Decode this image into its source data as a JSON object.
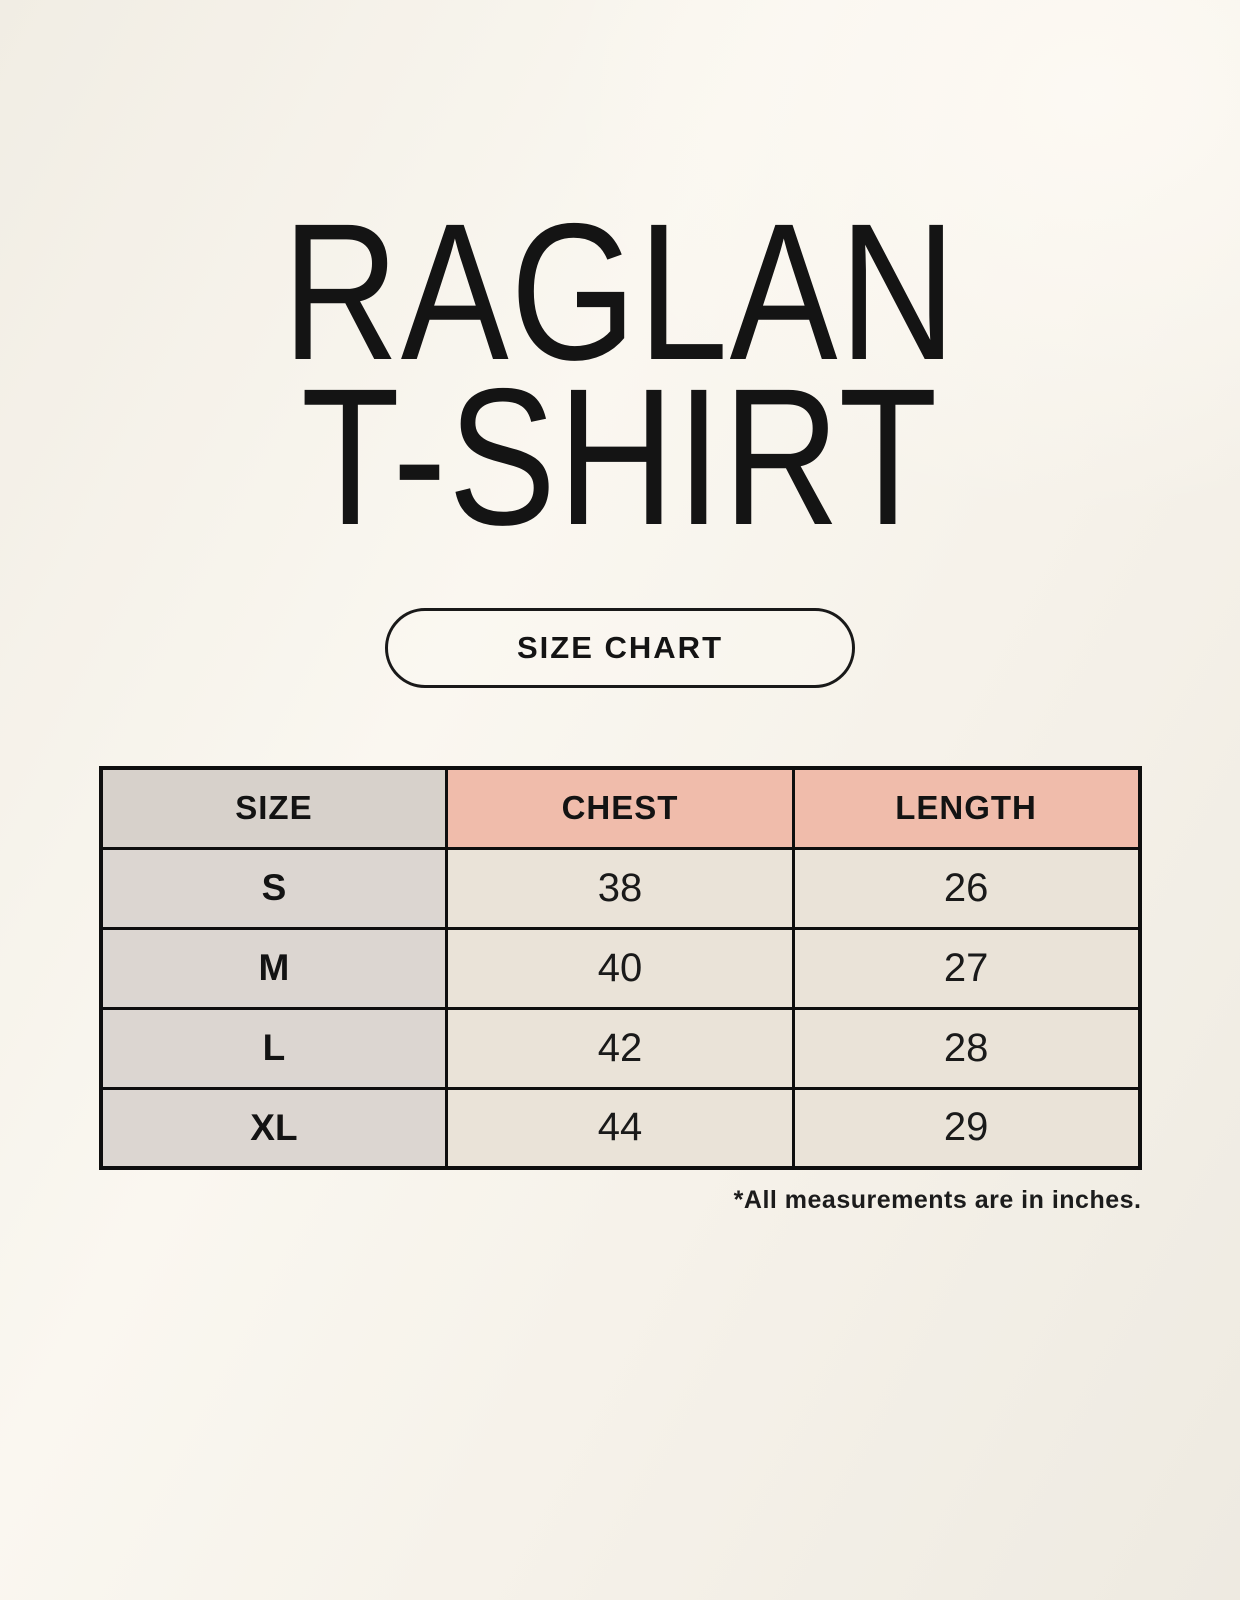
{
  "page": {
    "title_line1": "RAGLAN",
    "title_line2": "T-SHIRT",
    "button_label": "SIZE CHART",
    "footnote": "*All measurements are in inches."
  },
  "size_table": {
    "headers": [
      "SIZE",
      "CHEST",
      "LENGTH"
    ],
    "rows": [
      {
        "size": "S",
        "chest": "38",
        "length": "26"
      },
      {
        "size": "M",
        "chest": "40",
        "length": "27"
      },
      {
        "size": "L",
        "chest": "42",
        "length": "28"
      },
      {
        "size": "XL",
        "chest": "44",
        "length": "29"
      }
    ]
  },
  "chart_data": {
    "type": "table",
    "title": "RAGLAN T-SHIRT size chart",
    "columns": [
      "SIZE",
      "CHEST",
      "LENGTH"
    ],
    "rows": [
      [
        "S",
        38,
        26
      ],
      [
        "M",
        40,
        27
      ],
      [
        "L",
        42,
        28
      ],
      [
        "XL",
        44,
        29
      ]
    ],
    "units": "inches",
    "note": "*All measurements are in inches."
  },
  "colors": {
    "background_cream": "#f6f2ea",
    "header_pink": "#f0bcab",
    "size_column_gray": "#dcd6d1",
    "value_cell_beige": "#eae3d8",
    "border_black": "#0e0e0e",
    "text_black": "#141414"
  }
}
